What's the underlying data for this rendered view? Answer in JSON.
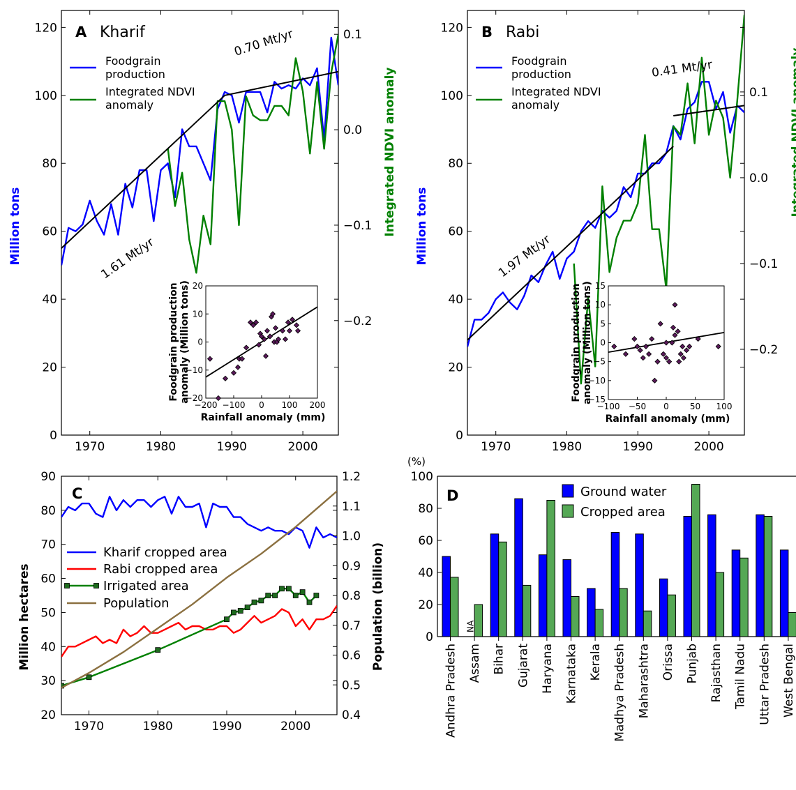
{
  "chart_data": [
    {
      "panel": "A",
      "title": "Kharif",
      "type": "line",
      "xlim": [
        1966,
        2005
      ],
      "ylim": [
        0,
        125
      ],
      "y2lim": [
        -0.32,
        0.125
      ],
      "xticks": [
        1970,
        1980,
        1990,
        2000
      ],
      "yticks": [
        0,
        20,
        40,
        60,
        80,
        100,
        120
      ],
      "y2ticks": [
        -0.2,
        -0.1,
        0.0,
        0.1
      ],
      "ylabel": "Million tons",
      "y2label": "Integrated NDVI anomaly",
      "ylabel_color": "#0000ff",
      "y2label_color": "#008000",
      "legend": [
        "Foodgrain production",
        "Integrated NDVI anomaly"
      ],
      "trend_labels": [
        "1.61 Mt/yr",
        "0.70 Mt/yr"
      ],
      "series": [
        {
          "name": "Foodgrain production",
          "color": "#0000ff",
          "axis": "left",
          "x": [
            1966,
            1967,
            1968,
            1969,
            1970,
            1971,
            1972,
            1973,
            1974,
            1975,
            1976,
            1977,
            1978,
            1979,
            1980,
            1981,
            1982,
            1983,
            1984,
            1985,
            1986,
            1987,
            1988,
            1989,
            1990,
            1991,
            1992,
            1993,
            1994,
            1995,
            1996,
            1997,
            1998,
            1999,
            2000,
            2001,
            2002,
            2003,
            2004,
            2005
          ],
          "y": [
            50,
            61,
            60,
            62,
            69,
            63,
            59,
            68,
            59,
            74,
            67,
            78,
            78,
            63,
            78,
            80,
            70,
            90,
            85,
            85,
            80,
            75,
            96,
            101,
            100,
            92,
            101,
            101,
            101,
            95,
            104,
            102,
            103,
            102,
            105,
            103,
            108,
            87,
            117,
            103
          ]
        },
        {
          "name": "Integrated NDVI anomaly",
          "color": "#008000",
          "axis": "right",
          "x": [
            1981,
            1982,
            1983,
            1984,
            1985,
            1986,
            1987,
            1988,
            1989,
            1990,
            1991,
            1992,
            1993,
            1994,
            1995,
            1996,
            1997,
            1998,
            1999,
            2000,
            2001,
            2002,
            2003,
            2004,
            2005
          ],
          "y": [
            -0.02,
            -0.08,
            -0.045,
            -0.115,
            -0.15,
            -0.09,
            -0.12,
            0.03,
            0.03,
            0.0,
            -0.1,
            0.035,
            0.015,
            0.01,
            0.01,
            0.025,
            0.025,
            0.015,
            0.075,
            0.04,
            -0.025,
            0.05,
            -0.02,
            0.06,
            0.1
          ]
        },
        {
          "name": "trend1",
          "color": "#000000",
          "axis": "left",
          "x": [
            1966,
            1989
          ],
          "y": [
            55,
            100
          ]
        },
        {
          "name": "trend2",
          "color": "#000000",
          "axis": "left",
          "x": [
            1989,
            2005
          ],
          "y": [
            100,
            107
          ]
        }
      ],
      "inset": {
        "xlabel": "Rainfall anomaly (mm)",
        "ylabel": "Foodgrain production anomaly (Million tons)",
        "xlim": [
          -200,
          200
        ],
        "ylim": [
          -20,
          20
        ],
        "xticks": [
          -200,
          -100,
          0,
          100,
          200
        ],
        "yticks": [
          -20,
          -10,
          0,
          10,
          20
        ],
        "points": [
          [
            -185,
            -6
          ],
          [
            -155,
            -20
          ],
          [
            -130,
            -13
          ],
          [
            -100,
            -11
          ],
          [
            -85,
            -9
          ],
          [
            -80,
            -6
          ],
          [
            -70,
            -6
          ],
          [
            -55,
            -2
          ],
          [
            -40,
            7
          ],
          [
            -30,
            6
          ],
          [
            -20,
            7
          ],
          [
            -10,
            -1
          ],
          [
            -5,
            3
          ],
          [
            0,
            2
          ],
          [
            10,
            1
          ],
          [
            15,
            -5
          ],
          [
            20,
            4
          ],
          [
            30,
            2
          ],
          [
            35,
            9
          ],
          [
            40,
            10
          ],
          [
            45,
            0
          ],
          [
            50,
            5
          ],
          [
            55,
            0
          ],
          [
            60,
            1
          ],
          [
            75,
            4
          ],
          [
            85,
            1
          ],
          [
            95,
            7
          ],
          [
            100,
            4
          ],
          [
            110,
            8
          ],
          [
            125,
            6
          ],
          [
            130,
            4
          ]
        ],
        "fit": [
          [
            -200,
            -12.5
          ],
          [
            200,
            12.5
          ]
        ]
      }
    },
    {
      "panel": "B",
      "title": "Rabi",
      "type": "line",
      "xlim": [
        1966,
        2005
      ],
      "ylim": [
        0,
        125
      ],
      "y2lim": [
        -0.3,
        0.195
      ],
      "xticks": [
        1970,
        1980,
        1990,
        2000
      ],
      "yticks": [
        0,
        20,
        40,
        60,
        80,
        100,
        120
      ],
      "y2ticks": [
        -0.2,
        -0.1,
        0.0,
        0.1
      ],
      "ylabel": "Million tons",
      "y2label": "Integrated NDVI anomaly",
      "ylabel_color": "#0000ff",
      "y2label_color": "#008000",
      "legend": [
        "Foodgrain production",
        "Integrated NDVI anomaly"
      ],
      "trend_labels": [
        "1.97 Mt/yr",
        "0.41 Mt/yr"
      ],
      "series": [
        {
          "name": "Foodgrain production",
          "color": "#0000ff",
          "axis": "left",
          "x": [
            1966,
            1967,
            1968,
            1969,
            1970,
            1971,
            1972,
            1973,
            1974,
            1975,
            1976,
            1977,
            1978,
            1979,
            1980,
            1981,
            1982,
            1983,
            1984,
            1985,
            1986,
            1987,
            1988,
            1989,
            1990,
            1991,
            1992,
            1993,
            1994,
            1995,
            1996,
            1997,
            1998,
            1999,
            2000,
            2001,
            2002,
            2003,
            2004,
            2005
          ],
          "y": [
            26,
            34,
            34,
            36,
            40,
            42,
            39,
            37,
            41,
            47,
            45,
            50,
            54,
            46,
            52,
            54,
            60,
            63,
            61,
            66,
            64,
            66,
            73,
            70,
            77,
            77,
            80,
            80,
            83,
            91,
            87,
            96,
            98,
            104,
            104,
            96,
            101,
            89,
            97,
            95
          ]
        },
        {
          "name": "Integrated NDVI anomaly",
          "color": "#008000",
          "axis": "right",
          "x": [
            1981,
            1982,
            1983,
            1984,
            1985,
            1986,
            1987,
            1988,
            1989,
            1990,
            1991,
            1992,
            1993,
            1994,
            1995,
            1996,
            1997,
            1998,
            1999,
            2000,
            2001,
            2002,
            2003,
            2004,
            2005
          ],
          "y": [
            -0.1,
            -0.24,
            -0.14,
            -0.22,
            -0.01,
            -0.11,
            -0.07,
            -0.05,
            -0.05,
            -0.03,
            0.05,
            -0.06,
            -0.06,
            -0.13,
            0.06,
            0.05,
            0.11,
            0.04,
            0.14,
            0.05,
            0.09,
            0.07,
            0.0,
            0.09,
            0.19
          ]
        },
        {
          "name": "trend1",
          "color": "#000000",
          "axis": "left",
          "x": [
            1966,
            1995
          ],
          "y": [
            28,
            85
          ]
        },
        {
          "name": "trend2",
          "color": "#000000",
          "axis": "left",
          "x": [
            1995,
            2005
          ],
          "y": [
            94,
            97
          ]
        }
      ],
      "inset": {
        "xlabel": "Rainfall anomaly (mm)",
        "ylabel": "Foodgrain production anomaly (Million tons)",
        "xlim": [
          -100,
          100
        ],
        "ylim": [
          -15,
          15
        ],
        "xticks": [
          -100,
          -50,
          0,
          50,
          100
        ],
        "yticks": [
          -15,
          -10,
          -5,
          0,
          5,
          10,
          15
        ],
        "points": [
          [
            -90,
            -1
          ],
          [
            -70,
            -3
          ],
          [
            -55,
            1
          ],
          [
            -50,
            -1
          ],
          [
            -45,
            -2
          ],
          [
            -40,
            -4
          ],
          [
            -35,
            -1
          ],
          [
            -30,
            -3
          ],
          [
            -25,
            1
          ],
          [
            -20,
            -10
          ],
          [
            -15,
            -5
          ],
          [
            -10,
            5
          ],
          [
            -5,
            -3
          ],
          [
            0,
            -4
          ],
          [
            0,
            0
          ],
          [
            5,
            -5
          ],
          [
            10,
            0
          ],
          [
            12,
            4
          ],
          [
            15,
            2
          ],
          [
            15,
            10
          ],
          [
            20,
            3
          ],
          [
            22,
            -5
          ],
          [
            25,
            -3
          ],
          [
            28,
            -1
          ],
          [
            30,
            -4
          ],
          [
            35,
            -2
          ],
          [
            40,
            -1
          ],
          [
            55,
            1
          ],
          [
            90,
            -1
          ]
        ],
        "fit": [
          [
            -100,
            -2.5
          ],
          [
            100,
            2.7
          ]
        ]
      }
    },
    {
      "panel": "C",
      "type": "line",
      "xlim": [
        1966,
        2006
      ],
      "ylim": [
        20,
        90
      ],
      "y2lim": [
        0.4,
        1.2
      ],
      "xticks": [
        1970,
        1980,
        1990,
        2000
      ],
      "yticks": [
        20,
        30,
        40,
        50,
        60,
        70,
        80,
        90
      ],
      "y2ticks": [
        0.4,
        0.5,
        0.6,
        0.7,
        0.8,
        0.9,
        1.0,
        1.1,
        1.2
      ],
      "ylabel": "Million hectares",
      "y2label": "Population (billion)",
      "legend": [
        "Kharif cropped area",
        "Rabi cropped area",
        "Irrigated area",
        "Population"
      ],
      "series": [
        {
          "name": "Kharif cropped area",
          "color": "#0000ff",
          "axis": "left",
          "x": [
            1966,
            1967,
            1968,
            1969,
            1970,
            1971,
            1972,
            1973,
            1974,
            1975,
            1976,
            1977,
            1978,
            1979,
            1980,
            1981,
            1982,
            1983,
            1984,
            1985,
            1986,
            1987,
            1988,
            1989,
            1990,
            1991,
            1992,
            1993,
            1994,
            1995,
            1996,
            1997,
            1998,
            1999,
            2000,
            2001,
            2002,
            2003,
            2004,
            2005,
            2006
          ],
          "y": [
            78,
            81,
            80,
            82,
            82,
            79,
            78,
            84,
            80,
            83,
            81,
            83,
            83,
            81,
            83,
            84,
            79,
            84,
            81,
            81,
            82,
            75,
            82,
            81,
            81,
            78,
            78,
            76,
            75,
            74,
            75,
            74,
            74,
            73,
            75,
            74,
            69,
            75,
            72,
            73,
            72
          ]
        },
        {
          "name": "Rabi cropped area",
          "color": "#ff0000",
          "axis": "left",
          "x": [
            1966,
            1967,
            1968,
            1969,
            1970,
            1971,
            1972,
            1973,
            1974,
            1975,
            1976,
            1977,
            1978,
            1979,
            1980,
            1981,
            1982,
            1983,
            1984,
            1985,
            1986,
            1987,
            1988,
            1989,
            1990,
            1991,
            1992,
            1993,
            1994,
            1995,
            1996,
            1997,
            1998,
            1999,
            2000,
            2001,
            2002,
            2003,
            2004,
            2005,
            2006
          ],
          "y": [
            37,
            40,
            40,
            41,
            42,
            43,
            41,
            42,
            41,
            45,
            43,
            44,
            46,
            44,
            44,
            45,
            46,
            47,
            45,
            46,
            46,
            45,
            45,
            46,
            46,
            44,
            45,
            47,
            49,
            47,
            48,
            49,
            51,
            50,
            46,
            48,
            45,
            48,
            48,
            49,
            52
          ]
        },
        {
          "name": "Irrigated area",
          "color": "#008000",
          "axis": "left",
          "marker": "square",
          "x": [
            1966,
            1970,
            1980,
            1990,
            1991,
            1992,
            1993,
            1994,
            1995,
            1996,
            1997,
            1998,
            1999,
            2000,
            2001,
            2002,
            2003
          ],
          "y": [
            28.5,
            31,
            39,
            48,
            50,
            50.5,
            51.5,
            53,
            53.5,
            55,
            55,
            57,
            57,
            55,
            56,
            53,
            55
          ]
        },
        {
          "name": "Population",
          "color": "#8b7040",
          "axis": "right",
          "x": [
            1966,
            1970,
            1975,
            1980,
            1985,
            1990,
            1995,
            2000,
            2006
          ],
          "y": [
            0.49,
            0.54,
            0.61,
            0.69,
            0.77,
            0.86,
            0.94,
            1.03,
            1.15
          ]
        }
      ]
    },
    {
      "panel": "D",
      "type": "bar",
      "ylim": [
        0,
        100
      ],
      "yticks": [
        0,
        20,
        40,
        60,
        80,
        100
      ],
      "unit": "(%)",
      "legend": [
        "Ground water",
        "Cropped area"
      ],
      "na_label": "NA",
      "categories": [
        "Andhra Pradesh",
        "Assam",
        "Bihar",
        "Gujarat",
        "Haryana",
        "Karnataka",
        "Kerala",
        "Madhya Pradesh",
        "Maharashtra",
        "Orissa",
        "Punjab",
        "Rajasthan",
        "Tamil Nadu",
        "Uttar Pradesh",
        "West Bengal"
      ],
      "series": [
        {
          "name": "Ground water",
          "color": "#0000ff",
          "values": [
            50,
            null,
            64,
            86,
            51,
            48,
            30,
            65,
            64,
            36,
            75,
            76,
            54,
            76,
            54
          ]
        },
        {
          "name": "Cropped area",
          "color": "#55a855",
          "values": [
            37,
            20,
            59,
            32,
            85,
            25,
            17,
            30,
            16,
            26,
            95,
            40,
            49,
            75,
            15
          ]
        }
      ]
    }
  ]
}
